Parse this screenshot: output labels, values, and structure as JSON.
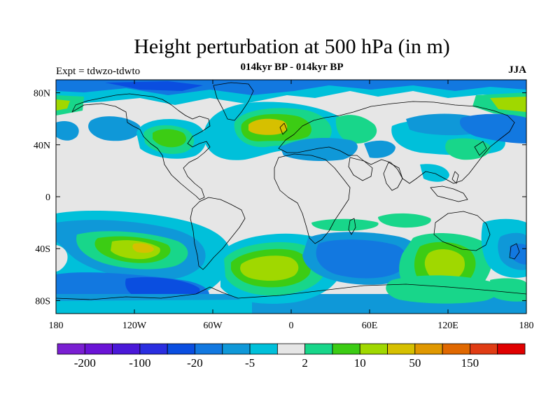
{
  "header": {
    "title": "Height perturbation at 500 hPa (in m)",
    "experiment": "Expt = tdwzo-tdwto",
    "subtitle": "014kyr BP - 014kyr BP",
    "season": "JJA"
  },
  "axes": {
    "lon_ticks": [
      {
        "value": -180,
        "label": "180"
      },
      {
        "value": -120,
        "label": "120W"
      },
      {
        "value": -60,
        "label": "60W"
      },
      {
        "value": 0,
        "label": "0"
      },
      {
        "value": 60,
        "label": "60E"
      },
      {
        "value": 120,
        "label": "120E"
      },
      {
        "value": 180,
        "label": "180"
      }
    ],
    "lat_ticks": [
      {
        "value": 80,
        "label": "80N"
      },
      {
        "value": 40,
        "label": "40N"
      },
      {
        "value": 0,
        "label": "0"
      },
      {
        "value": -40,
        "label": "40S"
      },
      {
        "value": -80,
        "label": "80S"
      }
    ],
    "lon_range": [
      -180,
      180
    ],
    "lat_range": [
      -90,
      90
    ]
  },
  "colorbar": {
    "colors": [
      "#7a1fd2",
      "#6a14d6",
      "#4a18d8",
      "#2a2ee0",
      "#0a4ee0",
      "#1278e0",
      "#0f98d8",
      "#00c0da",
      "#e6e6e6",
      "#18d68a",
      "#3ccc14",
      "#a0d800",
      "#d6c000",
      "#e09800",
      "#e06800",
      "#e03c14",
      "#e00000"
    ],
    "labels": [
      {
        "boundary": 1,
        "text": "-200"
      },
      {
        "boundary": 3,
        "text": "-100"
      },
      {
        "boundary": 5,
        "text": "-20"
      },
      {
        "boundary": 7,
        "text": "-5"
      },
      {
        "boundary": 9,
        "text": "2"
      },
      {
        "boundary": 11,
        "text": "10"
      },
      {
        "boundary": 13,
        "text": "50"
      },
      {
        "boundary": 15,
        "text": "150"
      }
    ]
  },
  "map_colors": {
    "background": "#e6e6e6",
    "cyan": "#00c0da",
    "light_blue": "#0f98d8",
    "blue": "#1278e0",
    "dark_blue": "#0a4ee0",
    "teal_green": "#18d68a",
    "green": "#3ccc14",
    "yellow_green": "#a0d800",
    "gold": "#d6c000",
    "orange": "#e09800",
    "coast": "#000000"
  }
}
